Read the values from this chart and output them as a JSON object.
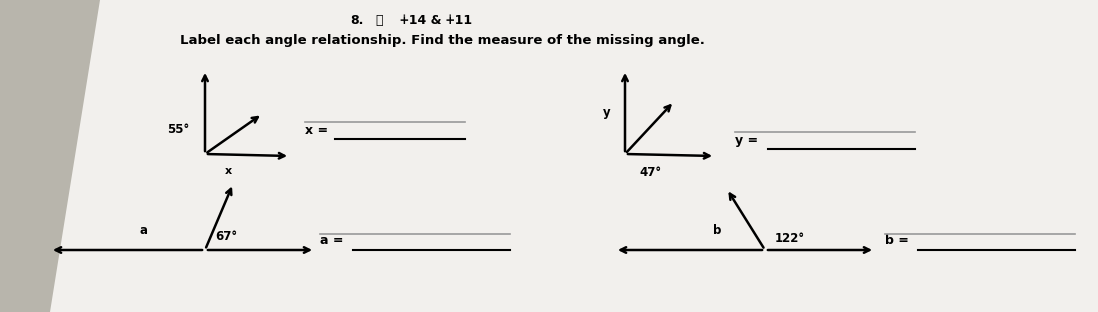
{
  "bg_color": "#b8b5ac",
  "paper_color": "#f2f0ed",
  "title_top_left": "8.",
  "title_top_symbol": "⌢",
  "title_top_angles": "∔14 & ∔11",
  "title_main": "Label each angle relationship. Find the measure of the missing angle.",
  "diagram1": {
    "angle1_label": "55°",
    "angle2_label": "x",
    "answer_label": "x ="
  },
  "diagram2": {
    "angle1_label": "y",
    "angle2_label": "47°",
    "answer_label": "y ="
  },
  "diagram3": {
    "angle1_label": "a",
    "angle2_label": "67°",
    "answer_label": "a ="
  },
  "diagram4": {
    "angle1_label": "b",
    "angle2_label": "122°",
    "answer_label": "b ="
  },
  "line_color": "#555555",
  "text_color": "#111111"
}
